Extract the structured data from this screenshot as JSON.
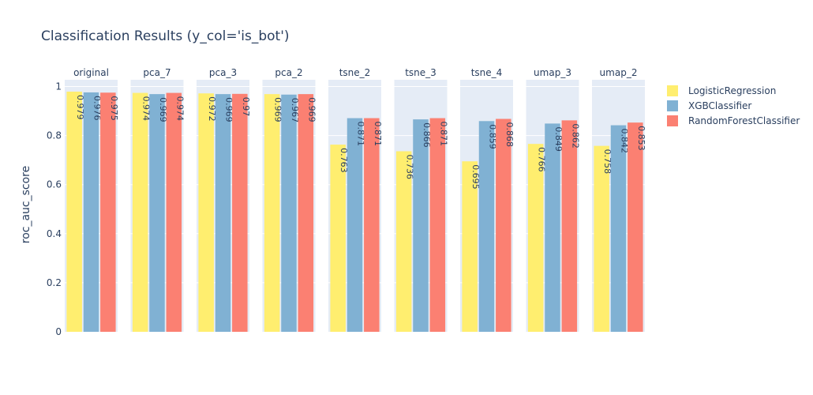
{
  "chart_data": {
    "type": "bar",
    "title": "Classification Results (y_col='is_bot')",
    "ylabel": "roc_auc_score",
    "xlabel": "",
    "ylim": [
      0,
      1
    ],
    "yticks": [
      0,
      0.2,
      0.4,
      0.6,
      0.8,
      1
    ],
    "ytick_labels": [
      "0",
      "0.2",
      "0.4",
      "0.6",
      "0.8",
      "1"
    ],
    "grid": true,
    "legend_position": "right",
    "facets": [
      "original",
      "pca_7",
      "pca_3",
      "pca_2",
      "tsne_2",
      "tsne_3",
      "tsne_4",
      "umap_3",
      "umap_2"
    ],
    "series": [
      {
        "name": "LogisticRegression",
        "color": "#FFEE6F",
        "values": [
          0.979,
          0.974,
          0.972,
          0.969,
          0.763,
          0.736,
          0.695,
          0.766,
          0.758
        ],
        "labels": [
          "0.979",
          "0.974",
          "0.972",
          "0.969",
          "0.763",
          "0.736",
          "0.695",
          "0.766",
          "0.758"
        ]
      },
      {
        "name": "XGBClassifier",
        "color": "#80B1D3",
        "values": [
          0.976,
          0.969,
          0.969,
          0.967,
          0.871,
          0.866,
          0.859,
          0.849,
          0.842
        ],
        "labels": [
          "0.976",
          "0.969",
          "0.969",
          "0.967",
          "0.871",
          "0.866",
          "0.859",
          "0.849",
          "0.842"
        ]
      },
      {
        "name": "RandomForestClassifier",
        "color": "#FB8072",
        "values": [
          0.975,
          0.974,
          0.97,
          0.969,
          0.871,
          0.871,
          0.868,
          0.862,
          0.853
        ],
        "labels": [
          "0.975",
          "0.974",
          "0.97",
          "0.969",
          "0.871",
          "0.871",
          "0.868",
          "0.862",
          "0.853"
        ]
      }
    ]
  }
}
